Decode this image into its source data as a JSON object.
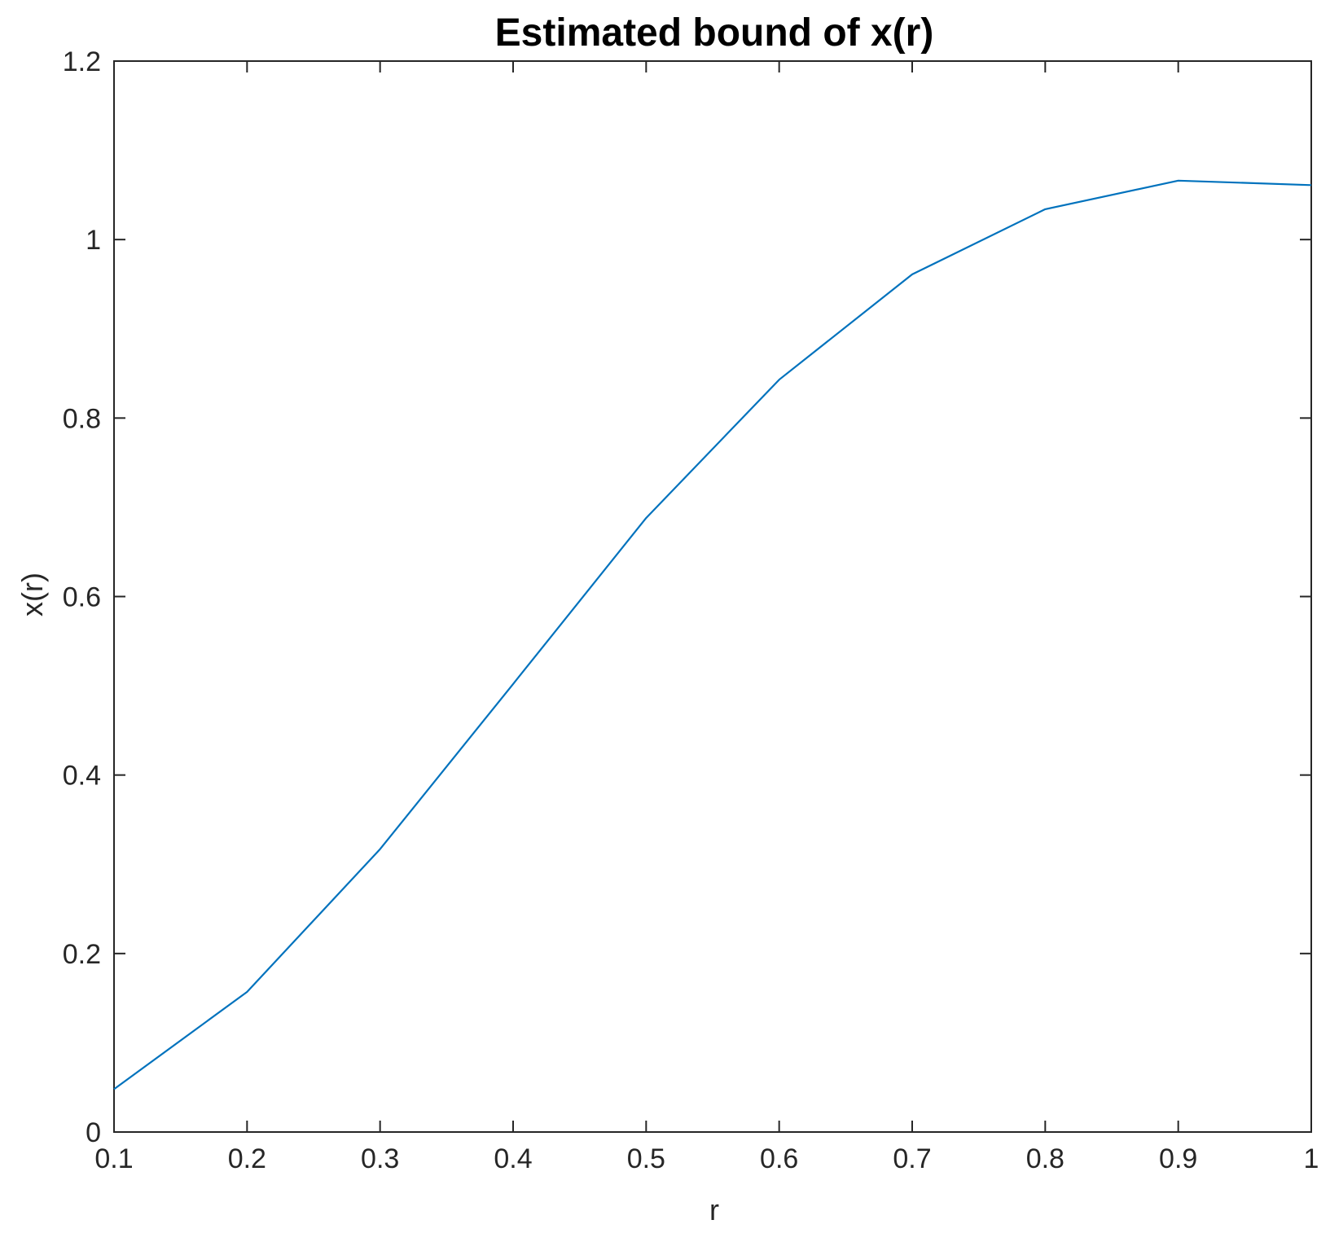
{
  "chart_data": {
    "type": "line",
    "title": "Estimated bound of x(r)",
    "xlabel": "r",
    "ylabel": "x(r)",
    "xlim": [
      0.1,
      1
    ],
    "ylim": [
      0,
      1.2
    ],
    "x_ticks": [
      "0.1",
      "0.2",
      "0.3",
      "0.4",
      "0.5",
      "0.6",
      "0.7",
      "0.8",
      "0.9",
      "1"
    ],
    "y_ticks": [
      "0",
      "0.2",
      "0.4",
      "0.6",
      "0.8",
      "1",
      "1.2"
    ],
    "x_tick_values": [
      0.1,
      0.2,
      0.3,
      0.4,
      0.5,
      0.6,
      0.7,
      0.8,
      0.9,
      1.0
    ],
    "y_tick_values": [
      0,
      0.2,
      0.4,
      0.6,
      0.8,
      1.0,
      1.2
    ],
    "grid": false,
    "line_color": "#0072BD",
    "series": [
      {
        "x": [
          0.1,
          0.2,
          0.3,
          0.4,
          0.5,
          0.6,
          0.7,
          0.8,
          0.9,
          1.0
        ],
        "y": [
          0.048,
          0.157,
          0.317,
          0.502,
          0.688,
          0.843,
          0.961,
          1.034,
          1.066,
          1.061
        ]
      }
    ]
  }
}
